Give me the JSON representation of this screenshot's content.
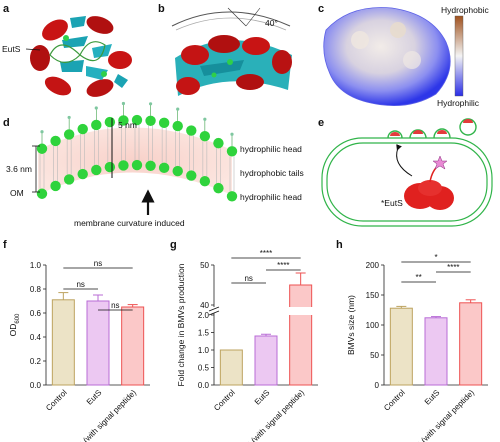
{
  "panels": {
    "a": {
      "letter": "a",
      "label": "EutS"
    },
    "b": {
      "letter": "b",
      "angle": "40°"
    },
    "c": {
      "letter": "c",
      "top_label": "Hydrophobic",
      "bottom_label": "Hydrophilic"
    },
    "d": {
      "letter": "d",
      "dim_top": "5 nm",
      "dim_side": "3.6 nm",
      "om": "OM",
      "head_top": "hydrophilic head",
      "tails": "hydrophobic tails",
      "head_bottom": "hydrophilic head",
      "caption": "membrane curvature induced"
    },
    "e": {
      "letter": "e",
      "label": "*EutS"
    },
    "f": {
      "letter": "f"
    },
    "g": {
      "letter": "g"
    },
    "h": {
      "letter": "h"
    }
  },
  "chart_data": [
    {
      "panel": "f",
      "type": "bar",
      "categories": [
        "Control",
        "EutS",
        "*EutS (with signal peptide)"
      ],
      "values": [
        0.71,
        0.7,
        0.65
      ],
      "errors": [
        0.06,
        0.05,
        0.02
      ],
      "ylabel": "OD600",
      "ylim": [
        0,
        1.0
      ],
      "yticks": [
        "0.0",
        "0.2",
        "0.4",
        "0.6",
        "0.8",
        "1.0"
      ],
      "significance": [
        {
          "from": 0,
          "to": 2,
          "label": "ns"
        },
        {
          "from": 0,
          "to": 1,
          "label": "ns"
        },
        {
          "from": 1,
          "to": 2,
          "label": "ns"
        }
      ],
      "colors": [
        "#ece3c6",
        "#ecc8f2",
        "#fbc8c8"
      ],
      "edges": [
        "#bda35f",
        "#b86bd6",
        "#ee5252"
      ]
    },
    {
      "panel": "g",
      "type": "bar",
      "categories": [
        "Control",
        "EutS",
        "*EutS (with signal peptide)"
      ],
      "values": [
        1.0,
        1.4,
        45
      ],
      "errors": [
        0.0,
        0.05,
        3
      ],
      "ylabel": "Fold change in BMVs production",
      "axis_break": true,
      "yticks": [
        "0.0",
        "0.5",
        "1.0",
        "1.5",
        "2.0",
        "40",
        "50"
      ],
      "significance": [
        {
          "from": 0,
          "to": 2,
          "label": "****"
        },
        {
          "from": 0,
          "to": 1,
          "label": "ns"
        },
        {
          "from": 1,
          "to": 2,
          "label": "****"
        }
      ],
      "colors": [
        "#ece3c6",
        "#ecc8f2",
        "#fbc8c8"
      ],
      "edges": [
        "#bda35f",
        "#b86bd6",
        "#ee5252"
      ]
    },
    {
      "panel": "h",
      "type": "bar",
      "categories": [
        "Control",
        "EutS",
        "*EutS (with signal peptide)"
      ],
      "values": [
        128,
        112,
        137
      ],
      "errors": [
        3,
        2,
        5
      ],
      "ylabel": "BMVs size (nm)",
      "ylim": [
        0,
        200
      ],
      "yticks": [
        "0",
        "50",
        "100",
        "150",
        "200"
      ],
      "significance": [
        {
          "from": 0,
          "to": 2,
          "label": "*"
        },
        {
          "from": 0,
          "to": 1,
          "label": "**"
        },
        {
          "from": 1,
          "to": 2,
          "label": "****"
        }
      ],
      "colors": [
        "#ece3c6",
        "#ecc8f2",
        "#fbc8c8"
      ],
      "edges": [
        "#bda35f",
        "#b86bd6",
        "#ee5252"
      ]
    }
  ]
}
